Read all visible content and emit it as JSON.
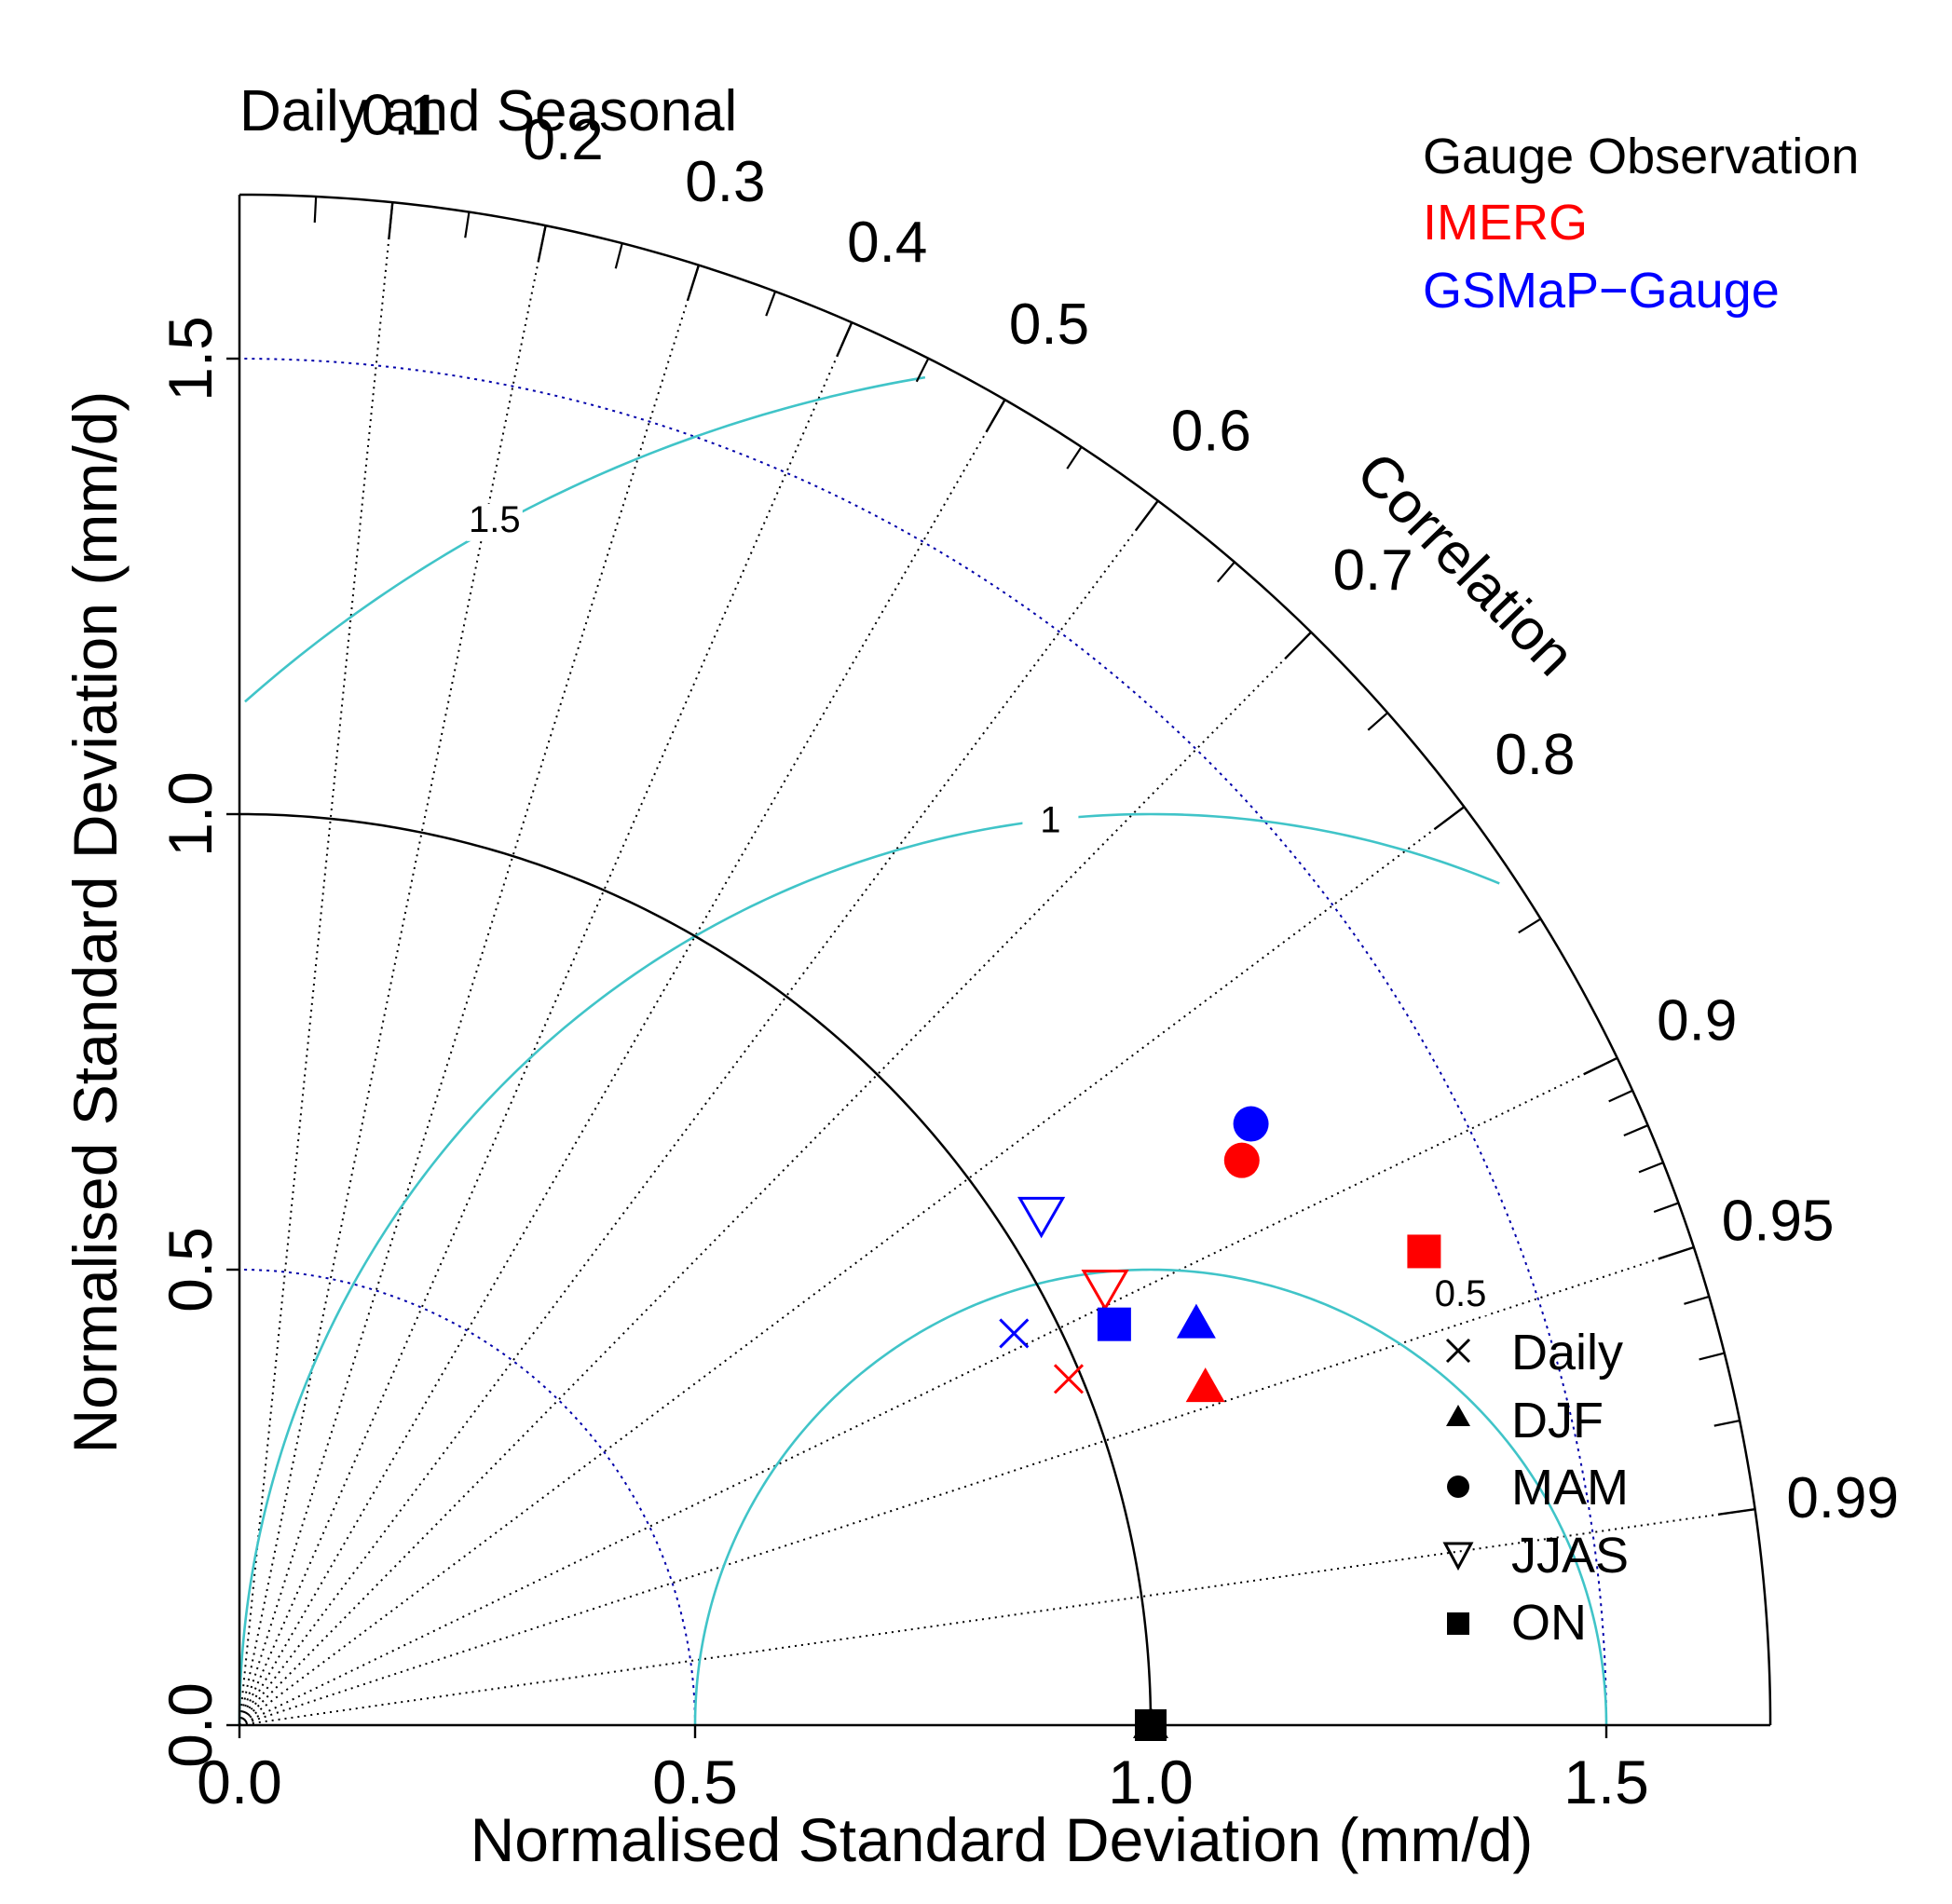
{
  "colors": {
    "gauge": "#000000",
    "imerg": "#ff0000",
    "gsmap": "#0000ff",
    "rms": "#40c4c8",
    "std_ref": "#0000aa",
    "axis": "#000000"
  },
  "chart_data": {
    "type": "scatter",
    "subtype": "taylor-diagram",
    "title": "Daily and Seasonal",
    "xlabel": "Normalised Standard Deviation (mm/d)",
    "ylabel": "Normalised Standard Deviation (mm/d)",
    "correlation_label": "Correlation",
    "xlim": [
      0,
      1.68
    ],
    "ylim": [
      0,
      1.68
    ],
    "x_ticks": [
      "0.0",
      "0.5",
      "1.0",
      "1.5"
    ],
    "y_ticks": [
      "0.0",
      "0.5",
      "1.0",
      "1.5"
    ],
    "correlation_ticks": [
      {
        "value": 0.1,
        "label": "0.1"
      },
      {
        "value": 0.2,
        "label": "0.2"
      },
      {
        "value": 0.3,
        "label": "0.3"
      },
      {
        "value": 0.4,
        "label": "0.4"
      },
      {
        "value": 0.5,
        "label": "0.5"
      },
      {
        "value": 0.6,
        "label": "0.6"
      },
      {
        "value": 0.7,
        "label": "0.7"
      },
      {
        "value": 0.8,
        "label": "0.8"
      },
      {
        "value": 0.9,
        "label": "0.9"
      },
      {
        "value": 0.95,
        "label": "0.95"
      },
      {
        "value": 0.99,
        "label": "0.99"
      }
    ],
    "rms_contours": [
      {
        "value": 0.5,
        "label": "0.5"
      },
      {
        "value": 1.0,
        "label": "1"
      },
      {
        "value": 1.5,
        "label": "1.5"
      }
    ],
    "std_reference_arcs": [
      0.5,
      1.5
    ],
    "reference": {
      "name": "Gauge Observation",
      "std": 1.0,
      "correlation": 1.0
    },
    "legend_models": [
      {
        "name": "Gauge Observation",
        "color_key": "gauge"
      },
      {
        "name": "IMERG",
        "color_key": "imerg"
      },
      {
        "name": "GSMaP−Gauge",
        "color_key": "gsmap"
      }
    ],
    "legend_seasons": [
      {
        "name": "Daily",
        "marker": "cross"
      },
      {
        "name": "DJF",
        "marker": "triangle"
      },
      {
        "name": "MAM",
        "marker": "circle"
      },
      {
        "name": "JJAS",
        "marker": "triangle-down-open"
      },
      {
        "name": "ON",
        "marker": "square"
      }
    ],
    "series": [
      {
        "name": "IMERG",
        "color_key": "imerg",
        "points": [
          {
            "season": "Daily",
            "x": 0.91,
            "y": 0.38
          },
          {
            "season": "DJF",
            "x": 1.06,
            "y": 0.37
          },
          {
            "season": "MAM",
            "x": 1.1,
            "y": 0.62
          },
          {
            "season": "JJAS",
            "x": 0.95,
            "y": 0.48
          },
          {
            "season": "ON",
            "x": 1.3,
            "y": 0.52
          }
        ]
      },
      {
        "name": "GSMaP−Gauge",
        "color_key": "gsmap",
        "points": [
          {
            "season": "Daily",
            "x": 0.85,
            "y": 0.43
          },
          {
            "season": "DJF",
            "x": 1.05,
            "y": 0.44
          },
          {
            "season": "MAM",
            "x": 1.11,
            "y": 0.66
          },
          {
            "season": "JJAS",
            "x": 0.88,
            "y": 0.56
          },
          {
            "season": "ON",
            "x": 0.96,
            "y": 0.44
          }
        ]
      }
    ]
  }
}
